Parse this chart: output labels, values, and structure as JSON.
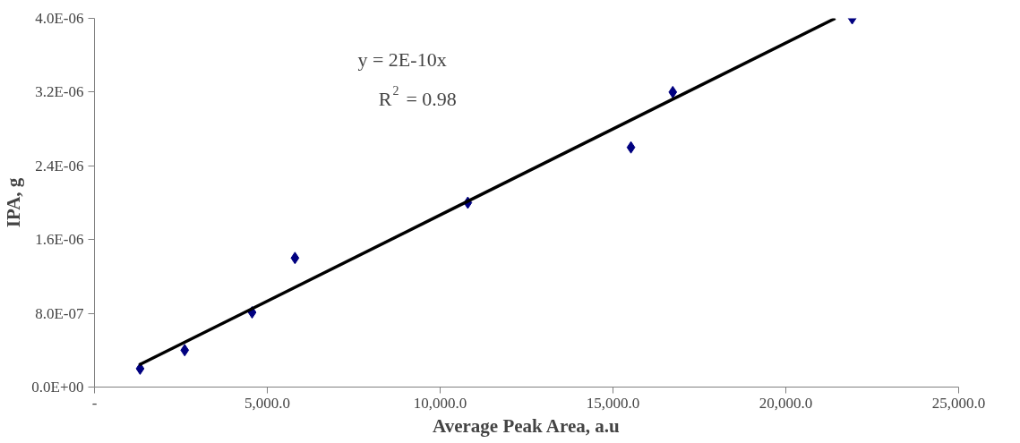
{
  "chart_data": {
    "type": "scatter",
    "xlabel": "Average Peak Area, a.u",
    "ylabel": "IPA, g",
    "xlim": [
      0,
      25000
    ],
    "ylim": [
      0,
      4e-06
    ],
    "xticks": [
      {
        "value": 0,
        "label": "-"
      },
      {
        "value": 5000,
        "label": "5,000.0"
      },
      {
        "value": 10000,
        "label": "10,000.0"
      },
      {
        "value": 15000,
        "label": "15,000.0"
      },
      {
        "value": 20000,
        "label": "20,000.0"
      },
      {
        "value": 25000,
        "label": "25,000.0"
      }
    ],
    "yticks": [
      {
        "value": 0,
        "label": "0.0E+00"
      },
      {
        "value": 8e-07,
        "label": "8.0E-07"
      },
      {
        "value": 1.6e-06,
        "label": "1.6E-06"
      },
      {
        "value": 2.4e-06,
        "label": "2.4E-06"
      },
      {
        "value": 3.2e-06,
        "label": "3.2E-06"
      },
      {
        "value": 4e-06,
        "label": "4.0E-06"
      }
    ],
    "grid": false,
    "series": [
      {
        "marker": "diamond",
        "color": "#000080",
        "x": [
          1320,
          2610,
          4560,
          5800,
          10800,
          15520,
          16730,
          21920
        ],
        "values": [
          2e-07,
          4e-07,
          8.1e-07,
          1.4e-06,
          2e-06,
          2.6e-06,
          3.2e-06,
          4e-06
        ]
      },
      {
        "type": "line",
        "color": "#000000",
        "x": [
          1290,
          21430
        ],
        "values": [
          2.4e-07,
          4e-06
        ]
      }
    ],
    "annotations": [
      "y = 2E-10x",
      "R$^{2}$ = 0.98"
    ]
  }
}
